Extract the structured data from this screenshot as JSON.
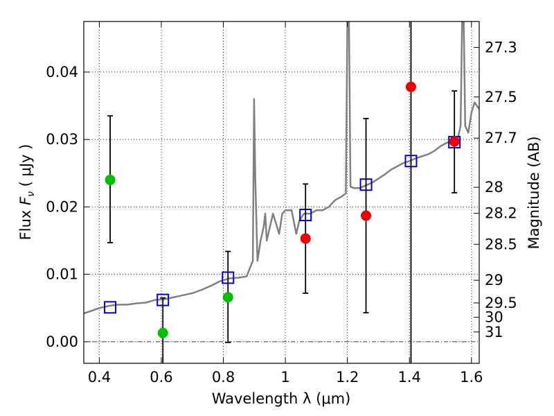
{
  "chart_data": {
    "type": "scatter",
    "xlabel": "Wavelength  λ (μm)",
    "ylabel": "Flux  F_ν  ( μJy )",
    "ylabel_parts": {
      "pre": "Flux  ",
      "sym": "F",
      "sub": "ν",
      "post": "  ( μJy )"
    },
    "y2label": "Magnitude (AB)",
    "xlim": [
      0.35,
      1.625
    ],
    "ylim": [
      -0.0032,
      0.0475
    ],
    "grid": true,
    "x_ticks": [
      {
        "value": 0.4,
        "label": "0.4"
      },
      {
        "value": 0.6,
        "label": "0.6"
      },
      {
        "value": 0.8,
        "label": "0.8"
      },
      {
        "value": 1.0,
        "label": "1"
      },
      {
        "value": 1.2,
        "label": "1.2"
      },
      {
        "value": 1.4,
        "label": "1.4"
      },
      {
        "value": 1.6,
        "label": "1.6"
      }
    ],
    "y_ticks": [
      {
        "value": 0.0,
        "label": "0.00"
      },
      {
        "value": 0.01,
        "label": "0.01"
      },
      {
        "value": 0.02,
        "label": "0.02"
      },
      {
        "value": 0.03,
        "label": "0.03"
      },
      {
        "value": 0.04,
        "label": "0.04"
      }
    ],
    "mag_ticks": [
      {
        "mag": 27.3,
        "label": "27.3"
      },
      {
        "mag": 27.5,
        "label": "27.5"
      },
      {
        "mag": 27.7,
        "label": "27.7"
      },
      {
        "mag": 28,
        "label": "28"
      },
      {
        "mag": 28.2,
        "label": "28.2"
      },
      {
        "mag": 28.5,
        "label": "28.5"
      },
      {
        "mag": 29,
        "label": "29"
      },
      {
        "mag": 29.5,
        "label": "29.5"
      },
      {
        "mag": 30,
        "label": "30"
      },
      {
        "mag": 31,
        "label": "31"
      }
    ],
    "model_spectrum": {
      "color": "#808080",
      "points": [
        [
          0.35,
          0.0042
        ],
        [
          0.37,
          0.0045
        ],
        [
          0.4,
          0.005
        ],
        [
          0.43,
          0.0053
        ],
        [
          0.46,
          0.0055
        ],
        [
          0.49,
          0.0055
        ],
        [
          0.52,
          0.0057
        ],
        [
          0.55,
          0.0058
        ],
        [
          0.58,
          0.0062
        ],
        [
          0.61,
          0.0063
        ],
        [
          0.64,
          0.0066
        ],
        [
          0.67,
          0.0069
        ],
        [
          0.7,
          0.0072
        ],
        [
          0.73,
          0.0077
        ],
        [
          0.76,
          0.0083
        ],
        [
          0.79,
          0.009
        ],
        [
          0.82,
          0.0094
        ],
        [
          0.85,
          0.0095
        ],
        [
          0.875,
          0.0097
        ],
        [
          0.895,
          0.012
        ],
        [
          0.899,
          0.036
        ],
        [
          0.903,
          0.024
        ],
        [
          0.91,
          0.012
        ],
        [
          0.92,
          0.015
        ],
        [
          0.93,
          0.017
        ],
        [
          0.935,
          0.019
        ],
        [
          0.94,
          0.015
        ],
        [
          0.95,
          0.017
        ],
        [
          0.96,
          0.019
        ],
        [
          0.97,
          0.0175
        ],
        [
          0.98,
          0.016
        ],
        [
          0.99,
          0.019
        ],
        [
          1.0,
          0.0195
        ],
        [
          1.02,
          0.0195
        ],
        [
          1.035,
          0.016
        ],
        [
          1.045,
          0.018
        ],
        [
          1.06,
          0.019
        ],
        [
          1.08,
          0.019
        ],
        [
          1.1,
          0.0195
        ],
        [
          1.12,
          0.0195
        ],
        [
          1.14,
          0.02
        ],
        [
          1.16,
          0.021
        ],
        [
          1.18,
          0.0215
        ],
        [
          1.195,
          0.022
        ],
        [
          1.2,
          0.048
        ],
        [
          1.205,
          0.048
        ],
        [
          1.21,
          0.023
        ],
        [
          1.22,
          0.0228
        ],
        [
          1.24,
          0.0228
        ],
        [
          1.26,
          0.0232
        ],
        [
          1.28,
          0.0236
        ],
        [
          1.3,
          0.0242
        ],
        [
          1.32,
          0.0248
        ],
        [
          1.34,
          0.0255
        ],
        [
          1.36,
          0.026
        ],
        [
          1.38,
          0.0265
        ],
        [
          1.4,
          0.0268
        ],
        [
          1.42,
          0.0272
        ],
        [
          1.44,
          0.0275
        ],
        [
          1.46,
          0.0278
        ],
        [
          1.48,
          0.0283
        ],
        [
          1.5,
          0.029
        ],
        [
          1.52,
          0.0295
        ],
        [
          1.54,
          0.0298
        ],
        [
          1.555,
          0.03
        ],
        [
          1.565,
          0.032
        ],
        [
          1.57,
          0.048
        ],
        [
          1.575,
          0.048
        ],
        [
          1.58,
          0.032
        ],
        [
          1.59,
          0.031
        ],
        [
          1.6,
          0.034
        ],
        [
          1.61,
          0.0355
        ],
        [
          1.625,
          0.0345
        ]
      ]
    },
    "series": [
      {
        "marker": "open-square",
        "color": "#0000cc",
        "points": [
          {
            "x": 0.435,
            "y": 0.0051
          },
          {
            "x": 0.605,
            "y": 0.0062
          },
          {
            "x": 0.815,
            "y": 0.0095
          },
          {
            "x": 1.065,
            "y": 0.0188
          },
          {
            "x": 1.26,
            "y": 0.0233
          },
          {
            "x": 1.405,
            "y": 0.0268
          },
          {
            "x": 1.545,
            "y": 0.0296
          }
        ]
      },
      {
        "marker": "filled-circle",
        "color": "#00c000",
        "points": [
          {
            "x": 0.435,
            "y": 0.024,
            "yerr_low": 0.0147,
            "yerr_high": 0.0335
          },
          {
            "x": 0.605,
            "y": 0.0013,
            "yerr_low": -0.0035,
            "yerr_high": 0.0065
          },
          {
            "x": 0.815,
            "y": 0.0066,
            "yerr_low": -0.0001,
            "yerr_high": 0.0134
          }
        ]
      },
      {
        "marker": "filled-circle",
        "color": "#ee0000",
        "points": [
          {
            "x": 1.065,
            "y": 0.0153,
            "yerr_low": 0.0072,
            "yerr_high": 0.0234
          },
          {
            "x": 1.26,
            "y": 0.0187,
            "yerr_low": 0.0043,
            "yerr_high": 0.0331
          },
          {
            "x": 1.405,
            "y": 0.0378,
            "yerr_low": -0.0035,
            "yerr_high": 0.048
          },
          {
            "x": 1.545,
            "y": 0.0297,
            "yerr_low": 0.0221,
            "yerr_high": 0.0372
          }
        ]
      }
    ]
  }
}
